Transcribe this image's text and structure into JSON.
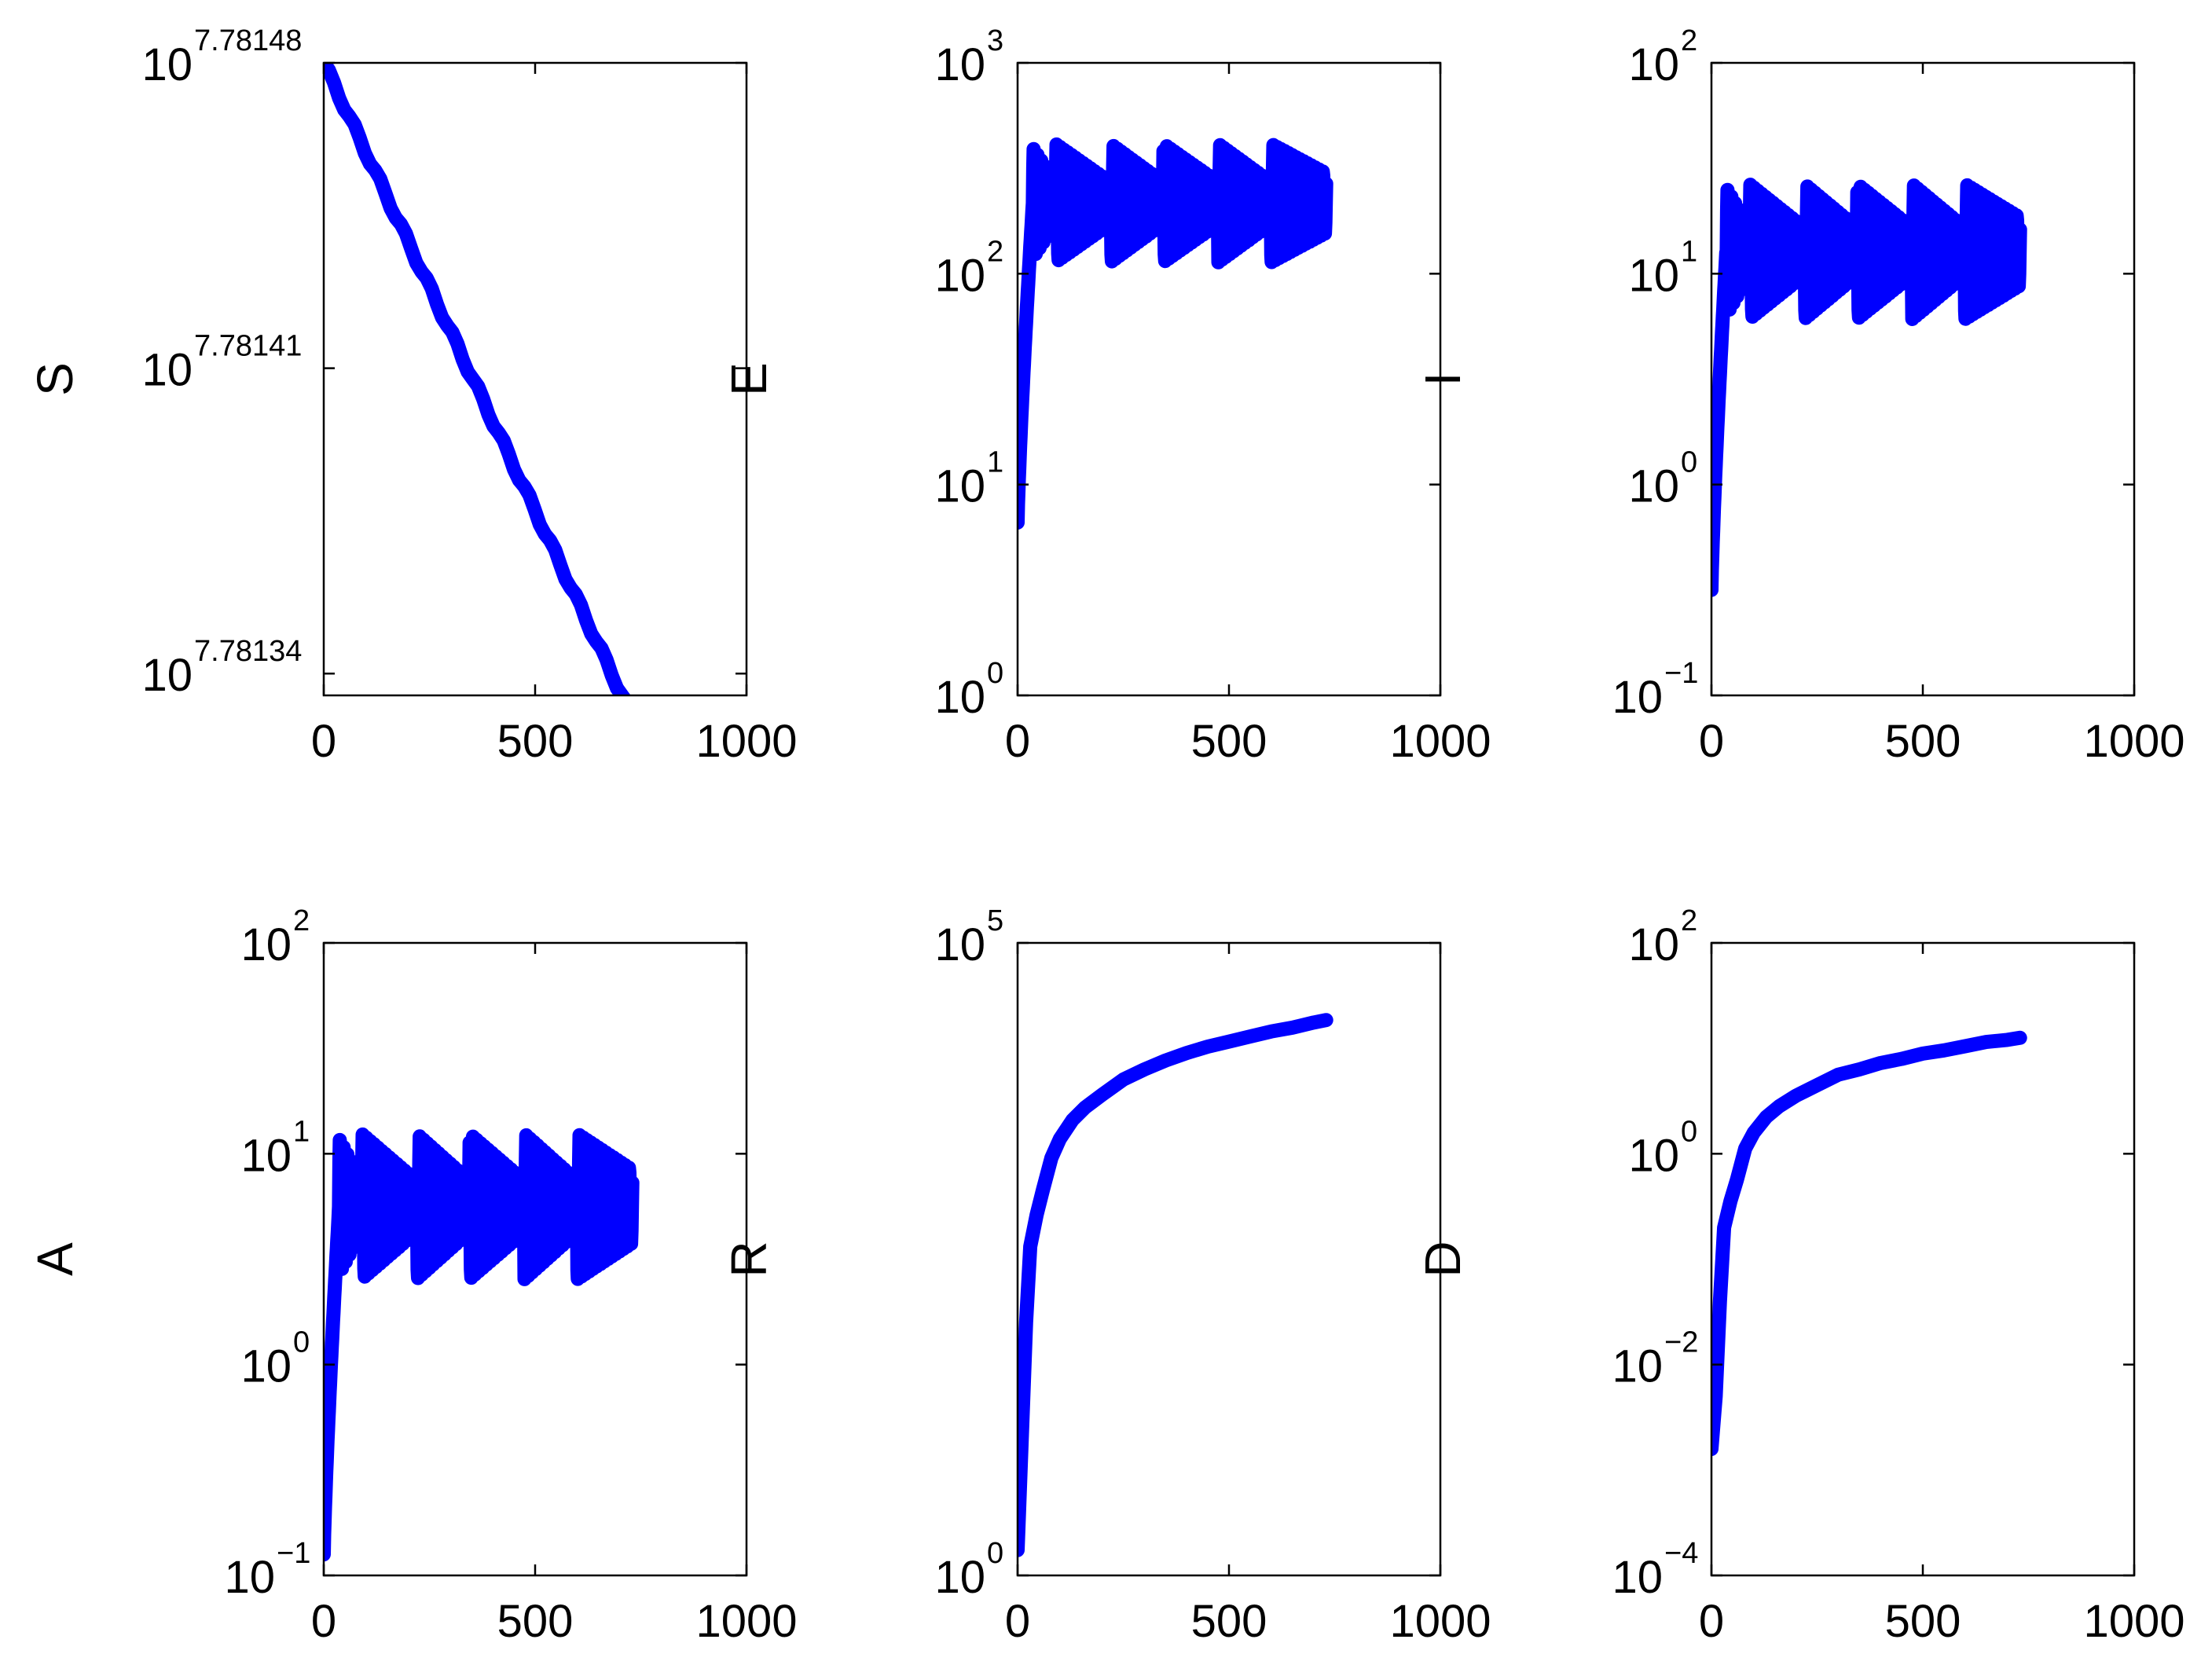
{
  "colors": {
    "series": "#0000ff",
    "axes": "#000000",
    "background": "#ffffff"
  },
  "chart_data": [
    {
      "type": "line",
      "ylabel": "S",
      "yscale": "log",
      "grid": false,
      "xlim": [
        0,
        1000
      ],
      "xticks": [
        0,
        500,
        1000
      ],
      "xtick_labels": [
        "0",
        "500",
        "1000"
      ],
      "ylim_exponent": [
        7.781335,
        7.78148
      ],
      "yticks": [
        {
          "base": "10",
          "exp": "7.78148",
          "value": 7.78148
        },
        {
          "base": "10",
          "exp": "7.78141",
          "value": 7.78141
        },
        {
          "base": "10",
          "exp": "7.78134",
          "value": 7.78134
        }
      ],
      "series": [
        {
          "kind": "S",
          "x": [
            0,
            730
          ],
          "exp": [
            7.78148,
            7.78133
          ]
        }
      ]
    },
    {
      "type": "line",
      "ylabel": "E",
      "yscale": "log",
      "grid": false,
      "xlim": [
        0,
        1000
      ],
      "xticks": [
        0,
        500,
        1000
      ],
      "xtick_labels": [
        "0",
        "500",
        "1000"
      ],
      "ylim_exponent": [
        0,
        3
      ],
      "yticks": [
        {
          "base": "10",
          "exp": "0",
          "value": 0
        },
        {
          "base": "10",
          "exp": "1",
          "value": 1
        },
        {
          "base": "10",
          "exp": "2",
          "value": 2
        },
        {
          "base": "10",
          "exp": "3",
          "value": 3
        }
      ],
      "series": [
        {
          "kind": "osc",
          "x_start": 0,
          "x_end": 730,
          "start_exp": 0.82,
          "rise_end_x": 35,
          "base_exp": 2.3,
          "band": [
            2.05,
            2.62
          ],
          "peak_x": [
            30,
            90,
            220,
            345,
            475,
            600
          ]
        }
      ]
    },
    {
      "type": "line",
      "ylabel": "I",
      "yscale": "log",
      "grid": false,
      "xlim": [
        0,
        1000
      ],
      "xticks": [
        0,
        500,
        1000
      ],
      "xtick_labels": [
        "0",
        "500",
        "1000"
      ],
      "ylim_exponent": [
        -1,
        2
      ],
      "yticks": [
        {
          "base": "10",
          "exp": "−1",
          "value": -1
        },
        {
          "base": "10",
          "exp": "0",
          "value": 0
        },
        {
          "base": "10",
          "exp": "1",
          "value": 1
        },
        {
          "base": "10",
          "exp": "2",
          "value": 2
        }
      ],
      "series": [
        {
          "kind": "osc",
          "x_start": 0,
          "x_end": 730,
          "start_exp": -0.5,
          "rise_end_x": 35,
          "base_exp": 1.1,
          "band": [
            0.78,
            1.43
          ],
          "peak_x": [
            30,
            90,
            220,
            345,
            475,
            600
          ]
        }
      ]
    },
    {
      "type": "line",
      "ylabel": "A",
      "yscale": "log",
      "grid": false,
      "xlim": [
        0,
        1000
      ],
      "xticks": [
        0,
        500,
        1000
      ],
      "xtick_labels": [
        "0",
        "500",
        "1000"
      ],
      "ylim_exponent": [
        -1,
        2
      ],
      "yticks": [
        {
          "base": "10",
          "exp": "−1",
          "value": -1
        },
        {
          "base": "10",
          "exp": "0",
          "value": 0
        },
        {
          "base": "10",
          "exp": "1",
          "value": 1
        },
        {
          "base": "10",
          "exp": "2",
          "value": 2
        }
      ],
      "series": [
        {
          "kind": "osc",
          "x_start": 0,
          "x_end": 730,
          "start_exp": -0.9,
          "rise_end_x": 35,
          "base_exp": 0.7,
          "band": [
            0.4,
            1.1
          ],
          "peak_x": [
            30,
            90,
            220,
            345,
            475,
            600
          ]
        }
      ]
    },
    {
      "type": "line",
      "ylabel": "R",
      "yscale": "log",
      "grid": false,
      "xlim": [
        0,
        1000
      ],
      "xticks": [
        0,
        500,
        1000
      ],
      "xtick_labels": [
        "0",
        "500",
        "1000"
      ],
      "ylim_exponent": [
        0,
        5
      ],
      "yticks": [
        {
          "base": "10",
          "exp": "0",
          "value": 0
        },
        {
          "base": "10",
          "exp": "5",
          "value": 5
        }
      ],
      "series": [
        {
          "kind": "curve",
          "points": [
            [
              0,
              0.2
            ],
            [
              10,
              1.1
            ],
            [
              20,
              2.0
            ],
            [
              30,
              2.6
            ],
            [
              45,
              2.85
            ],
            [
              60,
              3.05
            ],
            [
              80,
              3.3
            ],
            [
              100,
              3.45
            ],
            [
              130,
              3.6
            ],
            [
              160,
              3.7
            ],
            [
              200,
              3.8
            ],
            [
              250,
              3.92
            ],
            [
              300,
              4.0
            ],
            [
              350,
              4.07
            ],
            [
              400,
              4.13
            ],
            [
              450,
              4.18
            ],
            [
              500,
              4.22
            ],
            [
              550,
              4.26
            ],
            [
              600,
              4.3
            ],
            [
              650,
              4.33
            ],
            [
              700,
              4.37
            ],
            [
              730,
              4.39
            ]
          ]
        }
      ]
    },
    {
      "type": "line",
      "ylabel": "D",
      "yscale": "log",
      "grid": false,
      "xlim": [
        0,
        1000
      ],
      "xticks": [
        0,
        500,
        1000
      ],
      "xtick_labels": [
        "0",
        "500",
        "1000"
      ],
      "ylim_exponent": [
        -4,
        2
      ],
      "yticks": [
        {
          "base": "10",
          "exp": "−4",
          "value": -4
        },
        {
          "base": "10",
          "exp": "−2",
          "value": -2
        },
        {
          "base": "10",
          "exp": "0",
          "value": 0
        },
        {
          "base": "10",
          "exp": "2",
          "value": 2
        }
      ],
      "series": [
        {
          "kind": "curve",
          "points": [
            [
              0,
              -2.8
            ],
            [
              10,
              -2.3
            ],
            [
              20,
              -1.4
            ],
            [
              30,
              -0.7
            ],
            [
              45,
              -0.45
            ],
            [
              60,
              -0.25
            ],
            [
              80,
              0.05
            ],
            [
              100,
              0.2
            ],
            [
              130,
              0.35
            ],
            [
              160,
              0.45
            ],
            [
              200,
              0.55
            ],
            [
              250,
              0.65
            ],
            [
              300,
              0.75
            ],
            [
              350,
              0.8
            ],
            [
              400,
              0.86
            ],
            [
              450,
              0.9
            ],
            [
              500,
              0.95
            ],
            [
              550,
              0.98
            ],
            [
              600,
              1.02
            ],
            [
              650,
              1.06
            ],
            [
              700,
              1.08
            ],
            [
              730,
              1.1
            ]
          ]
        }
      ]
    }
  ]
}
